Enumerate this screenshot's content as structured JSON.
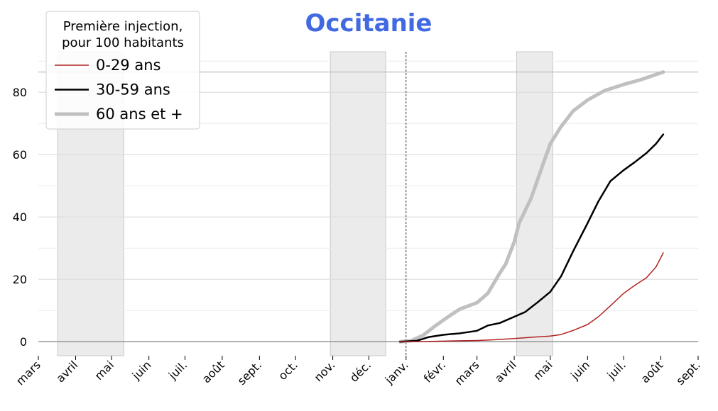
{
  "chart_data": {
    "type": "line",
    "title": "Occitanie",
    "title_color": "#4169e1",
    "xlabel": "",
    "ylabel": "",
    "ylim": [
      -4.5,
      93
    ],
    "y_ticks": [
      0,
      20,
      40,
      60,
      80
    ],
    "x_ticks": [
      {
        "label": "mars",
        "date": "2020-03-01"
      },
      {
        "label": "avril",
        "date": "2020-04-01"
      },
      {
        "label": "mai",
        "date": "2020-05-01"
      },
      {
        "label": "juin",
        "date": "2020-06-01"
      },
      {
        "label": "juil.",
        "date": "2020-07-01"
      },
      {
        "label": "août",
        "date": "2020-08-01"
      },
      {
        "label": "sept.",
        "date": "2020-09-01"
      },
      {
        "label": "oct.",
        "date": "2020-10-01"
      },
      {
        "label": "nov.",
        "date": "2020-11-01"
      },
      {
        "label": "déc.",
        "date": "2020-12-01"
      },
      {
        "label": "janv.",
        "date": "2021-01-01"
      },
      {
        "label": "févr.",
        "date": "2021-02-01"
      },
      {
        "label": "mars",
        "date": "2021-03-01"
      },
      {
        "label": "avril",
        "date": "2021-04-01"
      },
      {
        "label": "mai",
        "date": "2021-05-01"
      },
      {
        "label": "juin",
        "date": "2021-06-01"
      },
      {
        "label": "juil.",
        "date": "2021-07-01"
      },
      {
        "label": "août",
        "date": "2021-08-01"
      },
      {
        "label": "sept.",
        "date": "2021-09-01"
      }
    ],
    "x_range": [
      "2020-03-01",
      "2021-09-01"
    ],
    "shaded_periods": [
      {
        "start": "2020-03-17",
        "end": "2020-05-11"
      },
      {
        "start": "2020-10-30",
        "end": "2020-12-15"
      },
      {
        "start": "2021-04-03",
        "end": "2021-05-03"
      }
    ],
    "vline_date": "2021-01-01",
    "hline_y": 86.5,
    "grid": true,
    "legend": {
      "title": "Première injection,\npour 100 habitants",
      "position": "top-left"
    },
    "series": [
      {
        "name": "0-29 ans",
        "color": "#b22222",
        "width": 1.5,
        "points": [
          [
            "2020-12-27",
            0
          ],
          [
            "2021-01-15",
            0.05
          ],
          [
            "2021-02-01",
            0.2
          ],
          [
            "2021-02-15",
            0.3
          ],
          [
            "2021-03-01",
            0.4
          ],
          [
            "2021-03-15",
            0.6
          ],
          [
            "2021-04-01",
            1.0
          ],
          [
            "2021-04-15",
            1.4
          ],
          [
            "2021-05-01",
            1.8
          ],
          [
            "2021-05-10",
            2.3
          ],
          [
            "2021-05-20",
            3.6
          ],
          [
            "2021-06-01",
            5.5
          ],
          [
            "2021-06-10",
            8.0
          ],
          [
            "2021-06-20",
            11.5
          ],
          [
            "2021-07-01",
            15.5
          ],
          [
            "2021-07-10",
            18.0
          ],
          [
            "2021-07-20",
            20.5
          ],
          [
            "2021-07-28",
            24.0
          ],
          [
            "2021-08-03",
            28.5
          ]
        ]
      },
      {
        "name": "30-59 ans",
        "color": "#000000",
        "width": 2.5,
        "points": [
          [
            "2020-12-27",
            0
          ],
          [
            "2021-01-10",
            0.3
          ],
          [
            "2021-01-20",
            1.5
          ],
          [
            "2021-02-01",
            2.2
          ],
          [
            "2021-02-15",
            2.7
          ],
          [
            "2021-03-01",
            3.5
          ],
          [
            "2021-03-10",
            5.2
          ],
          [
            "2021-03-20",
            6.0
          ],
          [
            "2021-04-01",
            8.0
          ],
          [
            "2021-04-10",
            9.5
          ],
          [
            "2021-04-20",
            12.5
          ],
          [
            "2021-05-01",
            16.0
          ],
          [
            "2021-05-10",
            21.0
          ],
          [
            "2021-05-20",
            29.0
          ],
          [
            "2021-06-01",
            38.0
          ],
          [
            "2021-06-10",
            45.0
          ],
          [
            "2021-06-20",
            51.5
          ],
          [
            "2021-07-01",
            55.0
          ],
          [
            "2021-07-10",
            57.5
          ],
          [
            "2021-07-20",
            60.5
          ],
          [
            "2021-07-28",
            63.5
          ],
          [
            "2021-08-03",
            66.5
          ]
        ]
      },
      {
        "name": "60 ans et +",
        "color": "#c0c0c0",
        "width": 5,
        "points": [
          [
            "2020-12-27",
            0
          ],
          [
            "2021-01-05",
            0.3
          ],
          [
            "2021-01-15",
            2.0
          ],
          [
            "2021-01-25",
            5.0
          ],
          [
            "2021-02-05",
            8.0
          ],
          [
            "2021-02-15",
            10.5
          ],
          [
            "2021-03-01",
            12.5
          ],
          [
            "2021-03-10",
            15.5
          ],
          [
            "2021-03-20",
            22.0
          ],
          [
            "2021-03-25",
            25.0
          ],
          [
            "2021-04-01",
            32.0
          ],
          [
            "2021-04-05",
            38.0
          ],
          [
            "2021-04-15",
            46.0
          ],
          [
            "2021-04-25",
            57.0
          ],
          [
            "2021-05-01",
            63.5
          ],
          [
            "2021-05-10",
            69.0
          ],
          [
            "2021-05-20",
            74.0
          ],
          [
            "2021-06-01",
            77.5
          ],
          [
            "2021-06-15",
            80.5
          ],
          [
            "2021-07-01",
            82.5
          ],
          [
            "2021-07-15",
            84.0
          ],
          [
            "2021-08-03",
            86.5
          ]
        ]
      }
    ]
  }
}
